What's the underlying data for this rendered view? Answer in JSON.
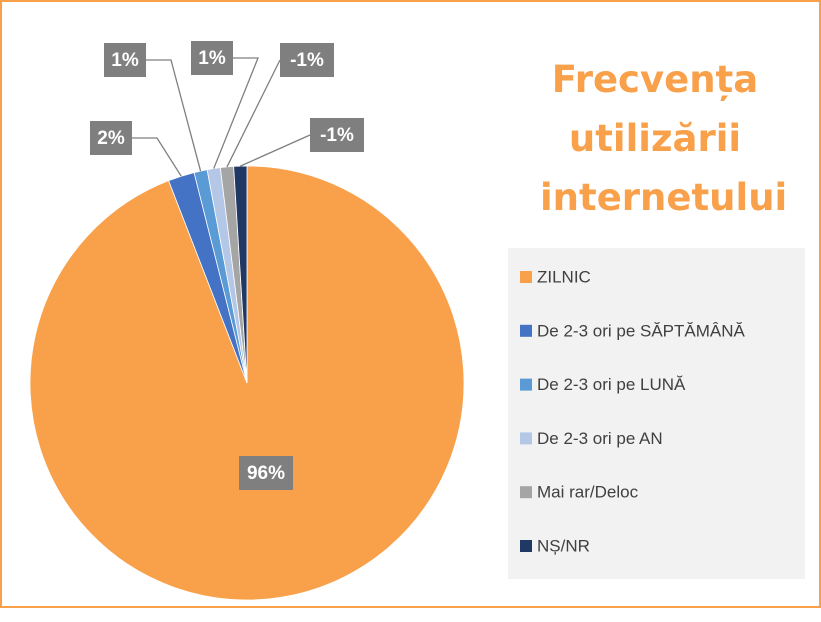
{
  "chart_data": {
    "type": "pie",
    "title": "Frecvența utilizării internetului",
    "categories": [
      "ZILNIC",
      "De 2-3 ori pe SĂPTĂMÂNĂ",
      "De 2-3 ori pe LUNĂ",
      "De 2-3 ori pe AN",
      "Mai rar/Deloc",
      "NȘ/NR"
    ],
    "values": [
      96,
      2,
      1,
      1,
      -1,
      -1
    ],
    "value_labels": [
      "96%",
      "2%",
      "1%",
      "1%",
      "-1%",
      "-1%"
    ],
    "colors": [
      "#f9a04b",
      "#4472c4",
      "#5b9bd5",
      "#b4c7e7",
      "#a5a5a5",
      "#203864"
    ],
    "legend": "right"
  }
}
